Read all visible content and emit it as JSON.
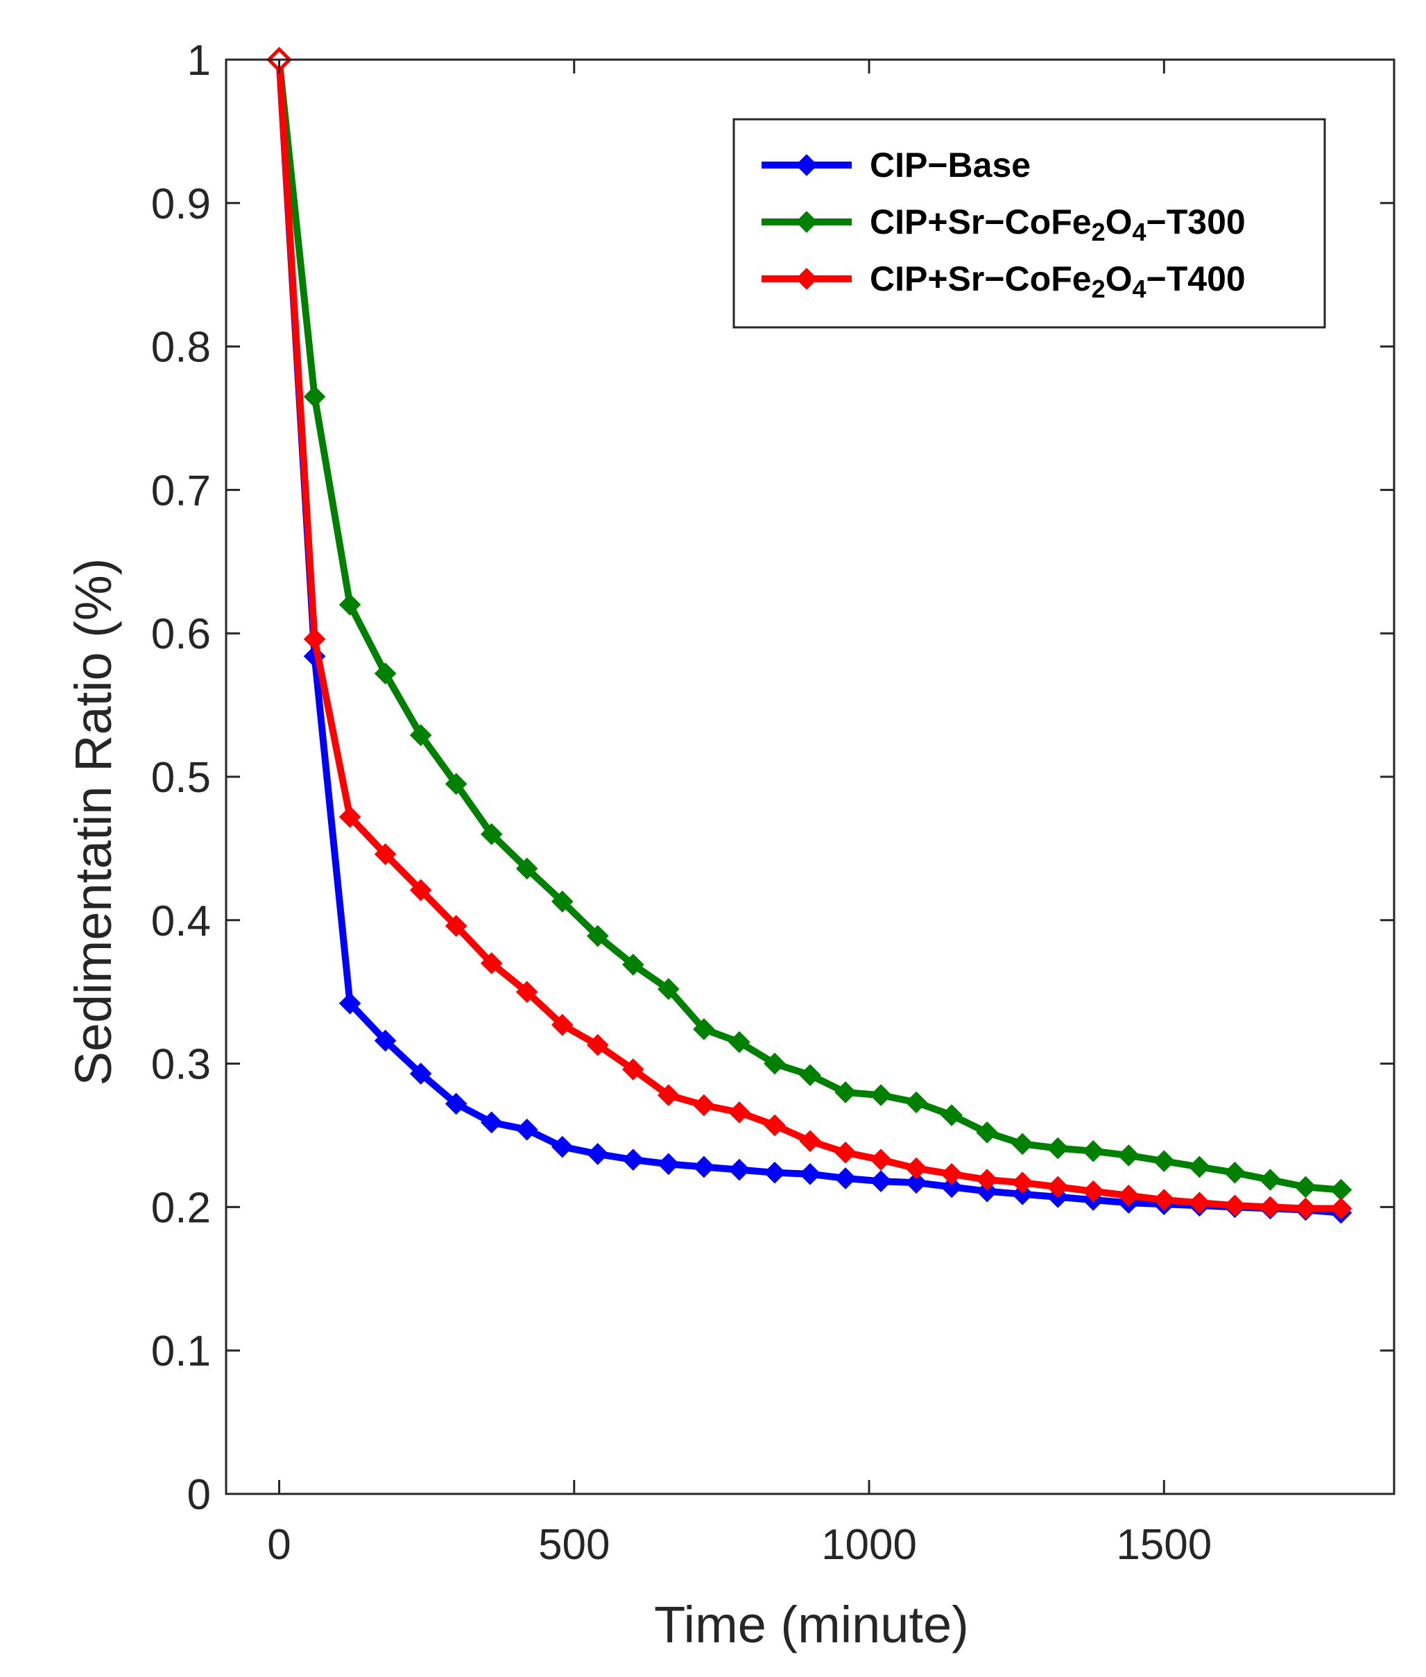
{
  "chart_data": {
    "type": "line",
    "title": "",
    "xlabel": "Time (minute)",
    "ylabel": "Sedimentatin Ratio (%)",
    "xlim": [
      -90,
      1890
    ],
    "ylim": [
      0,
      1
    ],
    "xticks": [
      0,
      500,
      1000,
      1500
    ],
    "xtick_labels": [
      "0",
      "500",
      "1000",
      "1500"
    ],
    "yticks": [
      0,
      0.1,
      0.2,
      0.3,
      0.4,
      0.5,
      0.6,
      0.7,
      0.8,
      0.9,
      1
    ],
    "ytick_labels": [
      "0",
      "0.1",
      "0.2",
      "0.3",
      "0.4",
      "0.5",
      "0.6",
      "0.7",
      "0.8",
      "0.9",
      "1"
    ],
    "grid": false,
    "legend_position": "top-right",
    "x": [
      0,
      60,
      120,
      180,
      240,
      300,
      360,
      420,
      480,
      540,
      600,
      660,
      720,
      780,
      840,
      900,
      960,
      1020,
      1080,
      1140,
      1200,
      1260,
      1320,
      1380,
      1440,
      1500,
      1560,
      1620,
      1680,
      1740,
      1800
    ],
    "series": [
      {
        "name": "CIP−Base",
        "legend_main": "CIP−Base",
        "legend_sub": "",
        "legend_end": "",
        "color": "#0000ff",
        "values": [
          1.0,
          0.584,
          0.342,
          0.316,
          0.293,
          0.272,
          0.259,
          0.254,
          0.242,
          0.237,
          0.233,
          0.23,
          0.228,
          0.226,
          0.224,
          0.223,
          0.22,
          0.218,
          0.217,
          0.214,
          0.211,
          0.209,
          0.207,
          0.205,
          0.203,
          0.202,
          0.201,
          0.2,
          0.199,
          0.198,
          0.196
        ]
      },
      {
        "name": "CIP+Sr−CoFe2O4−T300",
        "legend_main": "CIP+Sr−CoFe",
        "legend_sub": "2",
        "legend_mid": "O",
        "legend_sub2": "4",
        "legend_end": "−T300",
        "color": "#008000",
        "values": [
          1.0,
          0.765,
          0.62,
          0.572,
          0.529,
          0.495,
          0.46,
          0.436,
          0.413,
          0.389,
          0.369,
          0.352,
          0.324,
          0.315,
          0.3,
          0.292,
          0.28,
          0.278,
          0.273,
          0.264,
          0.252,
          0.244,
          0.241,
          0.239,
          0.236,
          0.232,
          0.228,
          0.224,
          0.219,
          0.214,
          0.212
        ]
      },
      {
        "name": "CIP+Sr−CoFe2O4−T400",
        "legend_main": "CIP+Sr−CoFe",
        "legend_sub": "2",
        "legend_mid": "O",
        "legend_sub2": "4",
        "legend_end": "−T400",
        "color": "#ff0000",
        "values": [
          1.0,
          0.596,
          0.472,
          0.446,
          0.421,
          0.396,
          0.37,
          0.35,
          0.327,
          0.313,
          0.296,
          0.278,
          0.271,
          0.266,
          0.257,
          0.246,
          0.238,
          0.233,
          0.227,
          0.223,
          0.219,
          0.217,
          0.214,
          0.211,
          0.208,
          0.205,
          0.203,
          0.201,
          0.2,
          0.199,
          0.199
        ]
      }
    ]
  }
}
